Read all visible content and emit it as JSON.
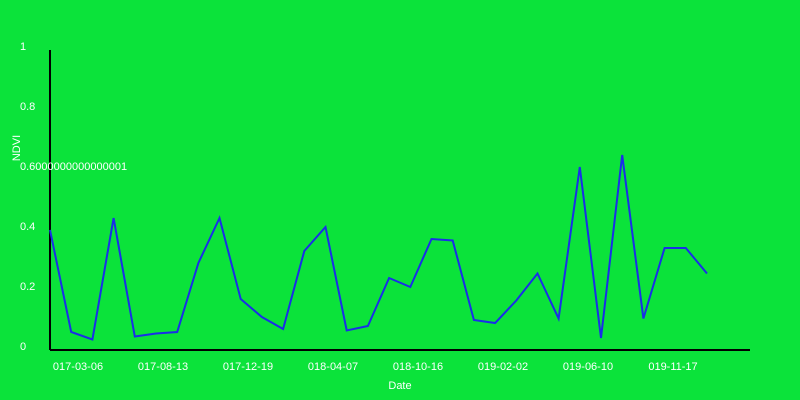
{
  "chart_data": {
    "type": "line",
    "xlabel": "Date",
    "ylabel": "NDVI",
    "ylim": [
      0,
      1
    ],
    "grid": false,
    "colors": {
      "background": "#0be33a",
      "line": "#1a2ee8",
      "axis": "#000000",
      "text": "#ffffff"
    },
    "y_ticks": [
      "0",
      "0.2",
      "0.4",
      "0.6000000000000001",
      "0.8",
      "1"
    ],
    "y_tick_values": [
      0,
      0.2,
      0.4,
      0.6,
      0.8,
      1
    ],
    "x_ticks": [
      "017-03-06",
      "017-08-13",
      "017-12-19",
      "018-04-07",
      "018-10-16",
      "019-02-02",
      "019-06-10",
      "019-11-17"
    ],
    "series": [
      {
        "values": [
          0.39,
          0.05,
          0.025,
          0.43,
          0.035,
          0.045,
          0.05,
          0.28,
          0.43,
          0.16,
          0.1,
          0.06,
          0.32,
          0.4,
          0.055,
          0.07,
          0.23,
          0.2,
          0.36,
          0.355,
          0.09,
          0.08,
          0.155,
          0.245,
          0.095,
          0.6,
          0.03,
          0.64,
          0.095,
          0.33,
          0.33,
          0.245
        ]
      }
    ]
  }
}
